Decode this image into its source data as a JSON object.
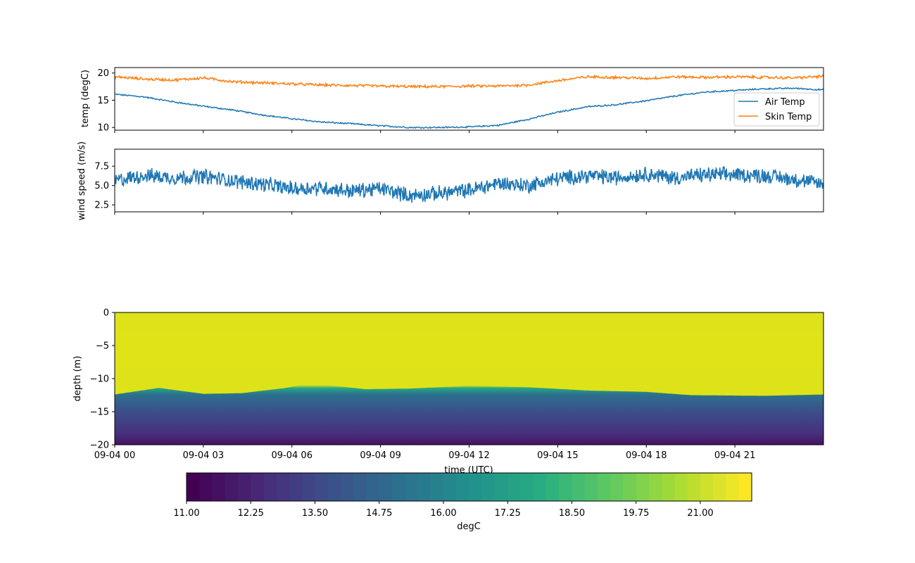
{
  "chart_data": [
    {
      "type": "line",
      "ylabel": "temp (degC)",
      "ylim": [
        9.5,
        21.0
      ],
      "yticks": [
        "20",
        "15",
        "10"
      ],
      "xlim_hours": [
        0,
        24
      ],
      "legend_position": "lower-right",
      "series": [
        {
          "name": "Air Temp",
          "color": "#1f77b4",
          "x_hours": [
            0,
            1,
            2,
            3,
            4,
            5,
            6,
            7,
            8,
            9,
            10,
            11,
            12,
            13,
            14,
            15,
            16,
            17,
            18,
            19,
            20,
            21,
            22,
            23,
            24
          ],
          "values": [
            16.1,
            15.6,
            14.7,
            13.9,
            13.2,
            12.3,
            11.6,
            11.0,
            10.7,
            10.3,
            10.0,
            10.0,
            10.1,
            10.4,
            11.5,
            12.8,
            13.8,
            14.2,
            14.9,
            15.8,
            16.5,
            16.8,
            17.1,
            17.2,
            16.9
          ]
        },
        {
          "name": "Skin Temp",
          "color": "#ff7f0e",
          "x_hours": [
            0,
            1,
            2,
            3,
            4,
            5,
            6,
            7,
            8,
            9,
            10,
            11,
            12,
            13,
            14,
            15,
            16,
            17,
            18,
            19,
            20,
            21,
            22,
            23,
            24
          ],
          "values": [
            19.3,
            18.9,
            18.7,
            19.1,
            18.4,
            18.2,
            18.0,
            17.8,
            17.7,
            17.6,
            17.5,
            17.5,
            17.6,
            17.6,
            17.8,
            18.6,
            19.3,
            19.2,
            19.0,
            19.3,
            19.2,
            19.3,
            19.2,
            19.1,
            19.4
          ]
        }
      ]
    },
    {
      "type": "line",
      "ylabel": "wind speed (m/s)",
      "ylim": [
        1.6,
        9.7
      ],
      "yticks": [
        "7.5",
        "5.0",
        "2.5"
      ],
      "xlim_hours": [
        0,
        24
      ],
      "series": [
        {
          "color": "#1f77b4",
          "x_hours": [
            0,
            1,
            2,
            3,
            4,
            5,
            6,
            7,
            8,
            9,
            10,
            11,
            12,
            13,
            14,
            15,
            16,
            17,
            18,
            19,
            20,
            21,
            22,
            23,
            24
          ],
          "values": [
            5.6,
            6.3,
            6.0,
            6.2,
            5.6,
            5.2,
            4.6,
            4.7,
            4.3,
            4.6,
            3.7,
            4.0,
            4.4,
            5.3,
            5.0,
            5.9,
            6.3,
            6.0,
            6.5,
            6.0,
            6.4,
            6.4,
            6.3,
            5.8,
            5.2
          ]
        }
      ]
    },
    {
      "type": "heatmap",
      "xlabel": "time (UTC)",
      "ylabel": "depth (m)",
      "ylim": [
        -20,
        0
      ],
      "yticks": [
        "0",
        "−5",
        "−10",
        "−15",
        "−20"
      ],
      "xlim_hours": [
        0,
        24
      ],
      "xticks": [
        "09-04 00",
        "09-04 03",
        "09-04 06",
        "09-04 09",
        "09-04 12",
        "09-04 15",
        "09-04 18",
        "09-04 21"
      ],
      "thermocline_depth_x_hours": [
        0,
        1.5,
        3,
        4.3,
        5.8,
        6.6,
        8.5,
        10,
        12,
        14,
        16,
        18,
        19.5,
        22,
        24
      ],
      "thermocline_depth_values": [
        -12.4,
        -11.4,
        -12.3,
        -12.2,
        -11.4,
        -10.7,
        -11.6,
        -11.5,
        -11.1,
        -11.3,
        -11.8,
        -12.0,
        -12.5,
        -12.6,
        -12.4
      ],
      "colorbar": {
        "label": "degC",
        "vmin": 11.0,
        "vmax": 22.0,
        "ticks": [
          "11.00",
          "12.25",
          "13.50",
          "14.75",
          "16.00",
          "17.25",
          "18.50",
          "19.75",
          "21.00"
        ],
        "tick_values": [
          11.0,
          12.25,
          13.5,
          14.75,
          16.0,
          17.25,
          18.5,
          19.75,
          21.0
        ],
        "colormap": "viridis"
      }
    }
  ]
}
